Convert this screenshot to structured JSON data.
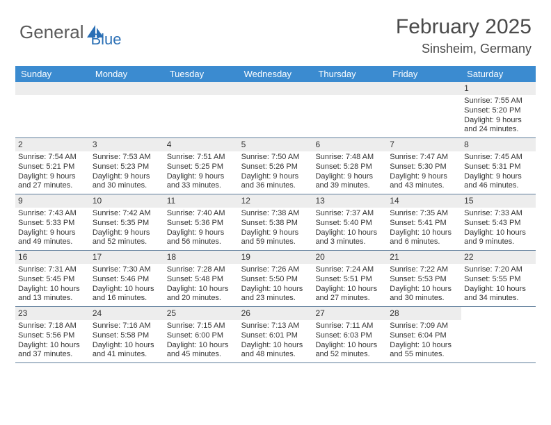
{
  "logo": {
    "part1": "General",
    "part2": "Blue"
  },
  "title": "February 2025",
  "location": "Sinsheim, Germany",
  "colors": {
    "header_bg": "#3b8bd0",
    "header_text": "#ffffff",
    "rule": "#5b7a99",
    "daynum_bg": "#ededed",
    "text": "#333333",
    "logo_gray": "#5a5a5a",
    "logo_blue": "#2a6fb5",
    "background": "#ffffff"
  },
  "days_of_week": [
    "Sunday",
    "Monday",
    "Tuesday",
    "Wednesday",
    "Thursday",
    "Friday",
    "Saturday"
  ],
  "weeks": [
    [
      {
        "empty": true
      },
      {
        "empty": true
      },
      {
        "empty": true
      },
      {
        "empty": true
      },
      {
        "empty": true
      },
      {
        "empty": true
      },
      {
        "num": "1",
        "sunrise": "Sunrise: 7:55 AM",
        "sunset": "Sunset: 5:20 PM",
        "daylight1": "Daylight: 9 hours",
        "daylight2": "and 24 minutes."
      }
    ],
    [
      {
        "num": "2",
        "sunrise": "Sunrise: 7:54 AM",
        "sunset": "Sunset: 5:21 PM",
        "daylight1": "Daylight: 9 hours",
        "daylight2": "and 27 minutes."
      },
      {
        "num": "3",
        "sunrise": "Sunrise: 7:53 AM",
        "sunset": "Sunset: 5:23 PM",
        "daylight1": "Daylight: 9 hours",
        "daylight2": "and 30 minutes."
      },
      {
        "num": "4",
        "sunrise": "Sunrise: 7:51 AM",
        "sunset": "Sunset: 5:25 PM",
        "daylight1": "Daylight: 9 hours",
        "daylight2": "and 33 minutes."
      },
      {
        "num": "5",
        "sunrise": "Sunrise: 7:50 AM",
        "sunset": "Sunset: 5:26 PM",
        "daylight1": "Daylight: 9 hours",
        "daylight2": "and 36 minutes."
      },
      {
        "num": "6",
        "sunrise": "Sunrise: 7:48 AM",
        "sunset": "Sunset: 5:28 PM",
        "daylight1": "Daylight: 9 hours",
        "daylight2": "and 39 minutes."
      },
      {
        "num": "7",
        "sunrise": "Sunrise: 7:47 AM",
        "sunset": "Sunset: 5:30 PM",
        "daylight1": "Daylight: 9 hours",
        "daylight2": "and 43 minutes."
      },
      {
        "num": "8",
        "sunrise": "Sunrise: 7:45 AM",
        "sunset": "Sunset: 5:31 PM",
        "daylight1": "Daylight: 9 hours",
        "daylight2": "and 46 minutes."
      }
    ],
    [
      {
        "num": "9",
        "sunrise": "Sunrise: 7:43 AM",
        "sunset": "Sunset: 5:33 PM",
        "daylight1": "Daylight: 9 hours",
        "daylight2": "and 49 minutes."
      },
      {
        "num": "10",
        "sunrise": "Sunrise: 7:42 AM",
        "sunset": "Sunset: 5:35 PM",
        "daylight1": "Daylight: 9 hours",
        "daylight2": "and 52 minutes."
      },
      {
        "num": "11",
        "sunrise": "Sunrise: 7:40 AM",
        "sunset": "Sunset: 5:36 PM",
        "daylight1": "Daylight: 9 hours",
        "daylight2": "and 56 minutes."
      },
      {
        "num": "12",
        "sunrise": "Sunrise: 7:38 AM",
        "sunset": "Sunset: 5:38 PM",
        "daylight1": "Daylight: 9 hours",
        "daylight2": "and 59 minutes."
      },
      {
        "num": "13",
        "sunrise": "Sunrise: 7:37 AM",
        "sunset": "Sunset: 5:40 PM",
        "daylight1": "Daylight: 10 hours",
        "daylight2": "and 3 minutes."
      },
      {
        "num": "14",
        "sunrise": "Sunrise: 7:35 AM",
        "sunset": "Sunset: 5:41 PM",
        "daylight1": "Daylight: 10 hours",
        "daylight2": "and 6 minutes."
      },
      {
        "num": "15",
        "sunrise": "Sunrise: 7:33 AM",
        "sunset": "Sunset: 5:43 PM",
        "daylight1": "Daylight: 10 hours",
        "daylight2": "and 9 minutes."
      }
    ],
    [
      {
        "num": "16",
        "sunrise": "Sunrise: 7:31 AM",
        "sunset": "Sunset: 5:45 PM",
        "daylight1": "Daylight: 10 hours",
        "daylight2": "and 13 minutes."
      },
      {
        "num": "17",
        "sunrise": "Sunrise: 7:30 AM",
        "sunset": "Sunset: 5:46 PM",
        "daylight1": "Daylight: 10 hours",
        "daylight2": "and 16 minutes."
      },
      {
        "num": "18",
        "sunrise": "Sunrise: 7:28 AM",
        "sunset": "Sunset: 5:48 PM",
        "daylight1": "Daylight: 10 hours",
        "daylight2": "and 20 minutes."
      },
      {
        "num": "19",
        "sunrise": "Sunrise: 7:26 AM",
        "sunset": "Sunset: 5:50 PM",
        "daylight1": "Daylight: 10 hours",
        "daylight2": "and 23 minutes."
      },
      {
        "num": "20",
        "sunrise": "Sunrise: 7:24 AM",
        "sunset": "Sunset: 5:51 PM",
        "daylight1": "Daylight: 10 hours",
        "daylight2": "and 27 minutes."
      },
      {
        "num": "21",
        "sunrise": "Sunrise: 7:22 AM",
        "sunset": "Sunset: 5:53 PM",
        "daylight1": "Daylight: 10 hours",
        "daylight2": "and 30 minutes."
      },
      {
        "num": "22",
        "sunrise": "Sunrise: 7:20 AM",
        "sunset": "Sunset: 5:55 PM",
        "daylight1": "Daylight: 10 hours",
        "daylight2": "and 34 minutes."
      }
    ],
    [
      {
        "num": "23",
        "sunrise": "Sunrise: 7:18 AM",
        "sunset": "Sunset: 5:56 PM",
        "daylight1": "Daylight: 10 hours",
        "daylight2": "and 37 minutes."
      },
      {
        "num": "24",
        "sunrise": "Sunrise: 7:16 AM",
        "sunset": "Sunset: 5:58 PM",
        "daylight1": "Daylight: 10 hours",
        "daylight2": "and 41 minutes."
      },
      {
        "num": "25",
        "sunrise": "Sunrise: 7:15 AM",
        "sunset": "Sunset: 6:00 PM",
        "daylight1": "Daylight: 10 hours",
        "daylight2": "and 45 minutes."
      },
      {
        "num": "26",
        "sunrise": "Sunrise: 7:13 AM",
        "sunset": "Sunset: 6:01 PM",
        "daylight1": "Daylight: 10 hours",
        "daylight2": "and 48 minutes."
      },
      {
        "num": "27",
        "sunrise": "Sunrise: 7:11 AM",
        "sunset": "Sunset: 6:03 PM",
        "daylight1": "Daylight: 10 hours",
        "daylight2": "and 52 minutes."
      },
      {
        "num": "28",
        "sunrise": "Sunrise: 7:09 AM",
        "sunset": "Sunset: 6:04 PM",
        "daylight1": "Daylight: 10 hours",
        "daylight2": "and 55 minutes."
      },
      {
        "empty": true
      }
    ]
  ]
}
